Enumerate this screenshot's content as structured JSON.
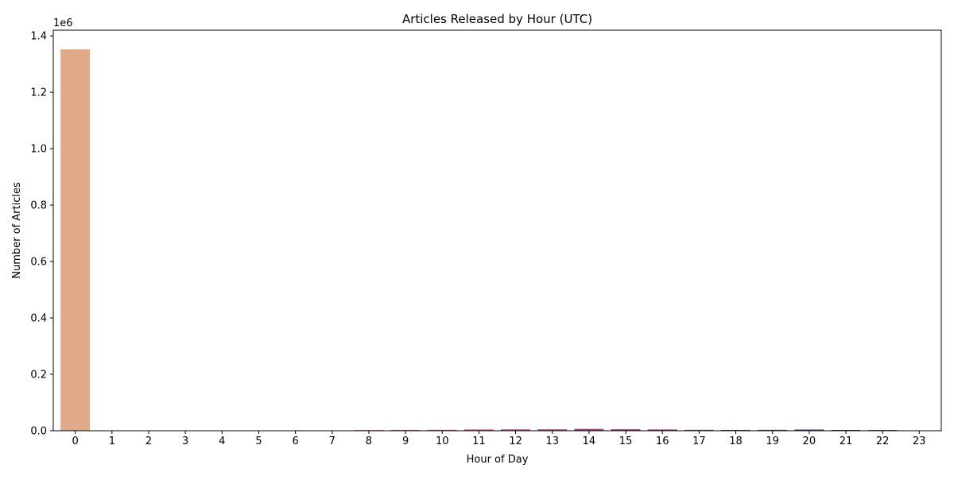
{
  "chart_data": {
    "type": "bar",
    "title": "Articles Released by Hour (UTC)",
    "xlabel": "Hour of Day",
    "ylabel": "Number of Articles",
    "offset_label": "1e6",
    "categories": [
      "0",
      "1",
      "2",
      "3",
      "4",
      "5",
      "6",
      "7",
      "8",
      "9",
      "10",
      "11",
      "12",
      "13",
      "14",
      "15",
      "16",
      "17",
      "18",
      "19",
      "20",
      "21",
      "22",
      "23"
    ],
    "values": [
      1352000,
      300,
      200,
      150,
      120,
      150,
      250,
      600,
      2500,
      3000,
      3300,
      4500,
      4800,
      5000,
      6500,
      5200,
      4500,
      3200,
      3000,
      3200,
      4200,
      2800,
      2500,
      0
    ],
    "ylim": [
      0,
      1420000
    ],
    "yticks": [
      0,
      200000,
      400000,
      600000,
      800000,
      1000000,
      1200000,
      1400000
    ],
    "ytick_labels": [
      "0.0",
      "0.2",
      "0.4",
      "0.6",
      "0.8",
      "1.0",
      "1.2",
      "1.4"
    ],
    "colors": [
      "#e0a988",
      "#e09e85",
      "#df9582",
      "#df8c80",
      "#de837e",
      "#dc7a7d",
      "#d9727c",
      "#d56a7c",
      "#d0637d",
      "#c95b7e",
      "#c1557f",
      "#b84f80",
      "#ae4a80",
      "#a34680",
      "#98437f",
      "#8c407c",
      "#803d79",
      "#743a74",
      "#69366e",
      "#5d3367",
      "#53305f",
      "#492c56",
      "#40284d",
      "#372344"
    ],
    "grid": false,
    "legend": "none"
  }
}
